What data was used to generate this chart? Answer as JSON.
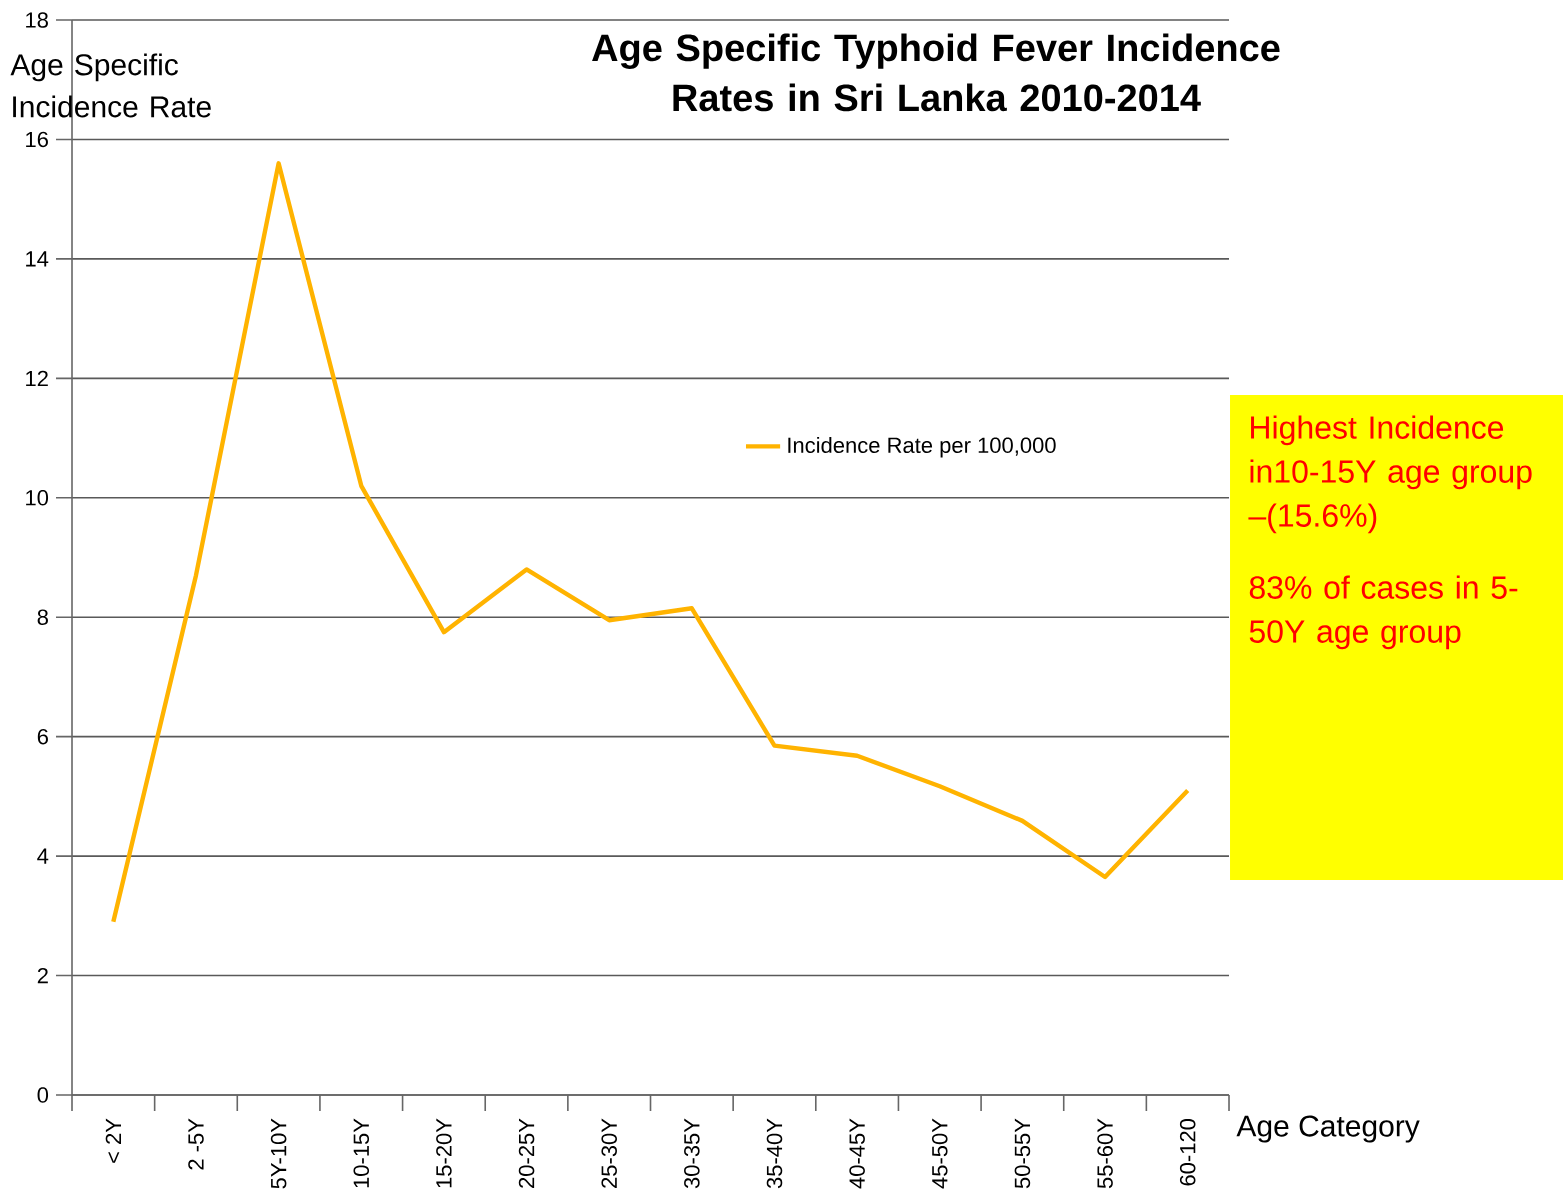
{
  "chart_data": {
    "type": "line",
    "title": "Age Specific Typhoid Fever Incidence Rates in Sri Lanka 2010-2014",
    "xlabel": "Age Category",
    "ylabel": "Age Specific Incidence Rate",
    "categories": [
      "< 2Y",
      "2 -5Y",
      "5Y-10Y",
      "10-15Y",
      "15-20Y",
      "20-25Y",
      "25-30Y",
      "30-35Y",
      "35-40Y",
      "40-45Y",
      "45-50Y",
      "50-55Y",
      "55-60Y",
      "60-120"
    ],
    "series": [
      {
        "name": "Incidence Rate per 100,000",
        "color": "#ffb300",
        "values": [
          2.9,
          8.7,
          15.6,
          10.2,
          7.75,
          8.8,
          7.95,
          8.15,
          5.85,
          5.68,
          5.17,
          4.59,
          3.65,
          5.1
        ]
      }
    ],
    "ylim": [
      0,
      18
    ],
    "yticks": [
      0,
      2,
      4,
      6,
      8,
      10,
      12,
      14,
      16,
      18
    ],
    "grid": "y",
    "legend": "top right",
    "annotations": [
      "Highest Incidence in10-15Y age group –(15.6%)",
      "83% of cases in 5-50Y age group"
    ]
  }
}
